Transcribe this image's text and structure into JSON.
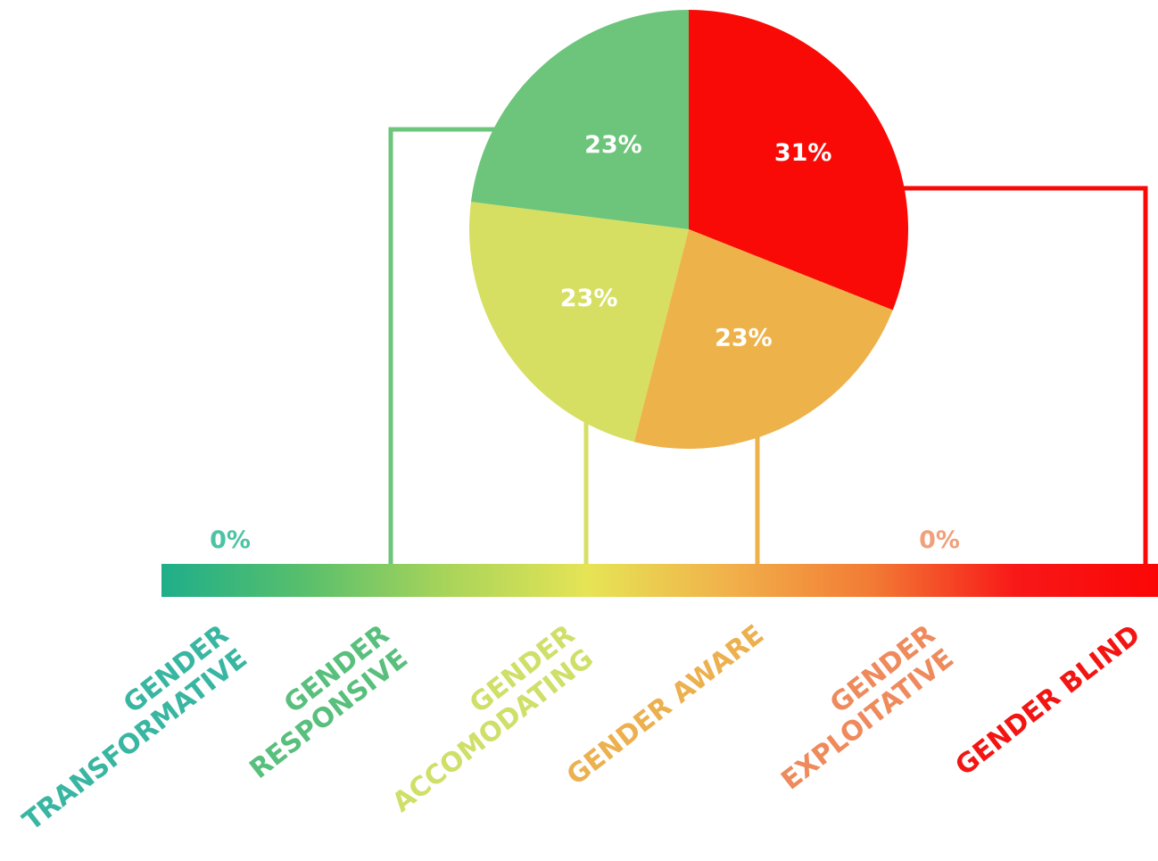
{
  "chart_data": {
    "type": "pie",
    "slices": [
      {
        "label": "GENDER BLIND",
        "value": 31,
        "display": "31%",
        "color": "#fa0a06"
      },
      {
        "label": "GENDER AWARE",
        "value": 23,
        "display": "23%",
        "color": "#eeb24a"
      },
      {
        "label": "GENDER ACCOMODATING",
        "value": 23,
        "display": "23%",
        "color": "#d6df62"
      },
      {
        "label": "GENDER RESPONSIVE",
        "value": 23,
        "display": "23%",
        "color": "#6cc57a"
      }
    ],
    "scale": {
      "categories": [
        {
          "lines": [
            "GENDER",
            "TRANSFORMATIVE"
          ],
          "color": "#39b6a2"
        },
        {
          "lines": [
            "GENDER",
            "RESPONSIVE"
          ],
          "color": "#58bf7c"
        },
        {
          "lines": [
            "GENDER",
            "ACCOMODATING"
          ],
          "color": "#cfdf68"
        },
        {
          "lines": [
            "GENDER AWARE"
          ],
          "color": "#ecb04e"
        },
        {
          "lines": [
            "GENDER",
            "EXPLOITATIVE"
          ],
          "color": "#ee8a5c"
        },
        {
          "lines": [
            "GENDER BLIND"
          ],
          "color": "#f21512"
        }
      ],
      "zero_labels": [
        {
          "category": "GENDER TRANSFORMATIVE",
          "text": "0%",
          "color": "#4cc4a4"
        },
        {
          "category": "GENDER EXPLOITATIVE",
          "text": "0%",
          "color": "#f0a17c"
        }
      ],
      "gradient": [
        "#1fae8a",
        "#58bf6c",
        "#a8d45a",
        "#e6e455",
        "#f1b04a",
        "#f27a34",
        "#f81818",
        "#fb0606"
      ]
    }
  }
}
